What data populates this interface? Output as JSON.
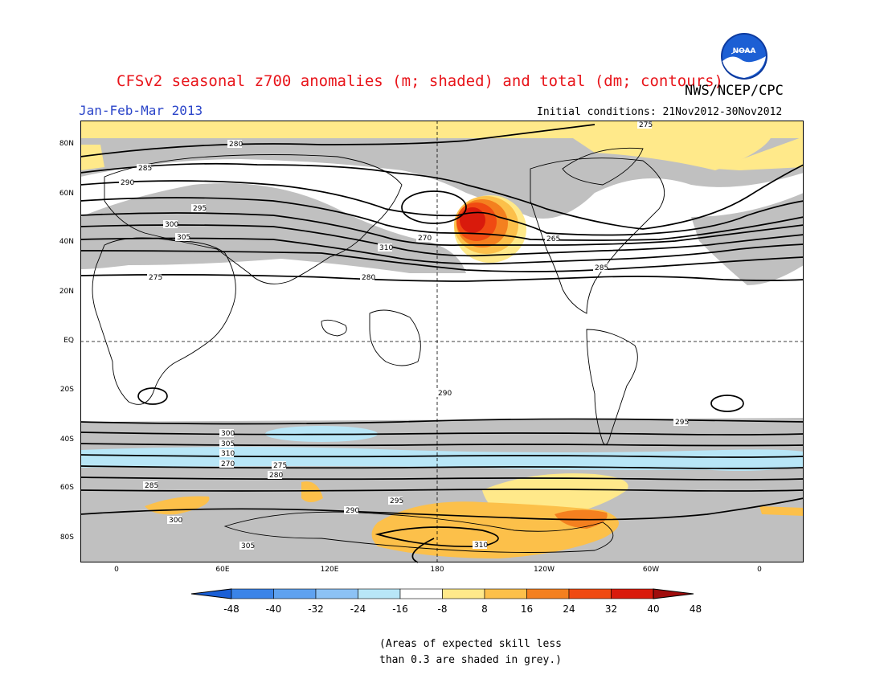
{
  "title": "CFSv2 seasonal z700 anomalies (m; shaded) and total (dm; contours)",
  "agency": "NWS/NCEP/CPC",
  "logo_text": "NOAA",
  "period": "Jan-Feb-Mar 2013",
  "initial_conditions": "Initial conditions: 21Nov2012-30Nov2012",
  "lat_labels": [
    "80N",
    "60N",
    "40N",
    "20N",
    "EQ",
    "20S",
    "40S",
    "60S",
    "80S"
  ],
  "lon_labels": [
    "0",
    "60E",
    "120E",
    "180",
    "120W",
    "60W",
    "0"
  ],
  "colorbar": {
    "ticks": [
      "-48",
      "-40",
      "-32",
      "-24",
      "-16",
      "-8",
      "8",
      "16",
      "24",
      "32",
      "40",
      "48"
    ],
    "colors": [
      "#1a5fd6",
      "#3b84e8",
      "#5fa2f0",
      "#8cc2f5",
      "#b8e6f7",
      "#ffffff",
      "#ffe98a",
      "#fcc04a",
      "#f4801f",
      "#f04a12",
      "#d91a0c",
      "#a00c0c"
    ]
  },
  "skill_note": {
    "line1": "(Areas of expected skill less",
    "line2": "than 0.3 are shaded in grey.)"
  },
  "contour_labels": [
    "275",
    "280",
    "285",
    "290",
    "295",
    "300",
    "305",
    "310",
    "270",
    "265",
    "275",
    "280",
    "285",
    "290",
    "295",
    "300",
    "305",
    "310",
    "270",
    "275",
    "280",
    "285",
    "290",
    "295",
    "300",
    "305",
    "310"
  ],
  "colors": {
    "title": "#e8151b",
    "period": "#2b45c9",
    "skill_grey": "#c0c0c0"
  }
}
